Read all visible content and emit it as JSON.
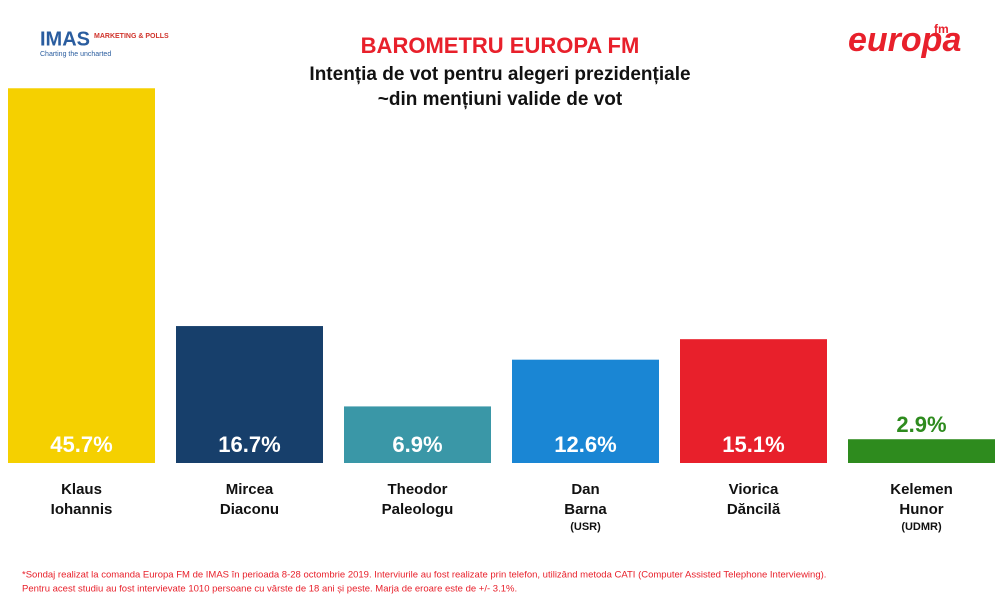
{
  "chart_data": {
    "type": "bar",
    "title": "BAROMETRU EUROPA FM",
    "subtitle": [
      "Intenția de vot pentru alegeri prezidențiale",
      "~din mențiuni valide de vot"
    ],
    "categories": [
      [
        "Klaus",
        "Iohannis"
      ],
      [
        "Mircea",
        "Diaconu"
      ],
      [
        "Theodor",
        "Paleologu"
      ],
      [
        "Dan",
        "Barna"
      ],
      [
        "Viorica",
        "Dăncilă"
      ],
      [
        "Kelemen",
        "Hunor"
      ]
    ],
    "parties": [
      null,
      null,
      null,
      "(USR)",
      null,
      "(UDMR)"
    ],
    "values": [
      45.7,
      16.7,
      6.9,
      12.6,
      15.1,
      2.9
    ],
    "value_labels": [
      "45.7%",
      "16.7%",
      "6.9%",
      "12.6%",
      "15.1%",
      "2.9%"
    ],
    "colors": [
      "#f5d000",
      "#173f6b",
      "#3a97a7",
      "#1a86d4",
      "#e8202b",
      "#2e8b1e"
    ],
    "footnote": [
      "*Sondaj realizat la comanda Europa FM de IMAS în perioada 8-28 octombrie 2019. Interviurile au fost realizate prin telefon, utilizând metoda CATI (Computer Assisted Telephone Interviewing).",
      "Pentru acest studiu au fost intervievate 1010 persoane cu vârste de 18 ani și peste. Marja de eroare este de +/- 3.1%."
    ],
    "logos": {
      "imas": "IMAS",
      "imas_tag": "MARKETING & POLLS",
      "imas_slogan": "Charting the uncharted",
      "europa": "europa",
      "fm": "fm"
    }
  }
}
